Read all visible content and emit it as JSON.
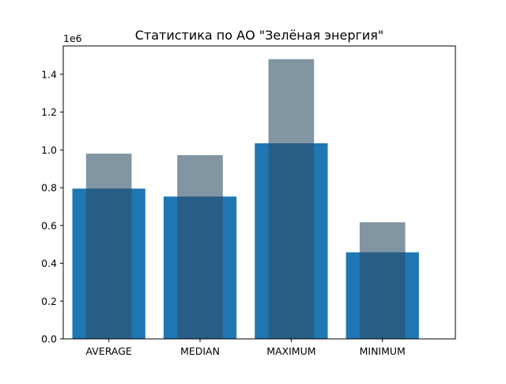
{
  "chart_data": {
    "type": "bar",
    "title": "Статистика по АО \"Зелёная энергия\"",
    "xlabel": "",
    "ylabel": "",
    "y_offset_label": "1e6",
    "ylim": [
      0,
      1.55
    ],
    "yticks": [
      "0.0",
      "0.2",
      "0.4",
      "0.6",
      "0.8",
      "1.0",
      "1.2",
      "1.4"
    ],
    "categories": [
      "AVERAGE",
      "MEDIAN",
      "MAXIMUM",
      "MINIMUM"
    ],
    "series": [
      {
        "values": [
          0.795,
          0.753,
          1.035,
          0.458
        ],
        "color": "#1f77b4",
        "opacity": 1.0
      },
      {
        "values": [
          0.98,
          0.972,
          1.48,
          0.617
        ],
        "color": "#2f4f66",
        "opacity": 0.6
      }
    ],
    "grid": false,
    "legend": "none"
  }
}
